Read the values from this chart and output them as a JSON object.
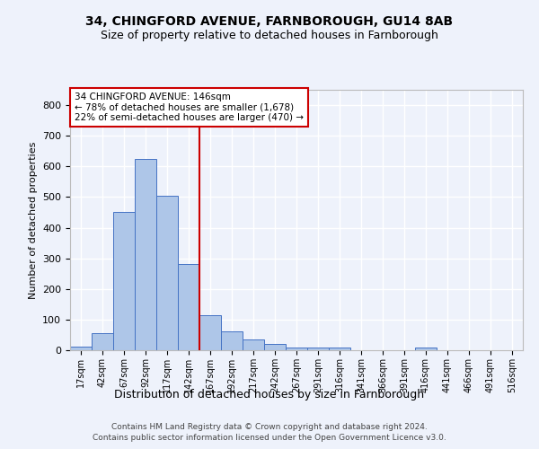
{
  "title_line1": "34, CHINGFORD AVENUE, FARNBOROUGH, GU14 8AB",
  "title_line2": "Size of property relative to detached houses in Farnborough",
  "xlabel": "Distribution of detached houses by size in Farnborough",
  "ylabel": "Number of detached properties",
  "footer_line1": "Contains HM Land Registry data © Crown copyright and database right 2024.",
  "footer_line2": "Contains public sector information licensed under the Open Government Licence v3.0.",
  "annotation_line1": "34 CHINGFORD AVENUE: 146sqm",
  "annotation_line2": "← 78% of detached houses are smaller (1,678)",
  "annotation_line3": "22% of semi-detached houses are larger (470) →",
  "bar_categories": [
    "17sqm",
    "42sqm",
    "67sqm",
    "92sqm",
    "117sqm",
    "142sqm",
    "167sqm",
    "192sqm",
    "217sqm",
    "242sqm",
    "267sqm",
    "291sqm",
    "316sqm",
    "341sqm",
    "366sqm",
    "391sqm",
    "416sqm",
    "441sqm",
    "466sqm",
    "491sqm",
    "516sqm"
  ],
  "bar_values": [
    12,
    55,
    450,
    625,
    505,
    280,
    115,
    62,
    35,
    20,
    10,
    8,
    8,
    0,
    0,
    0,
    8,
    0,
    0,
    0,
    0
  ],
  "bar_color": "#aec6e8",
  "bar_edge_color": "#4472c4",
  "vline_x": 5.5,
  "vline_color": "#cc0000",
  "background_color": "#eef2fb",
  "grid_color": "#ffffff",
  "ylim": [
    0,
    850
  ],
  "yticks": [
    0,
    100,
    200,
    300,
    400,
    500,
    600,
    700,
    800
  ]
}
